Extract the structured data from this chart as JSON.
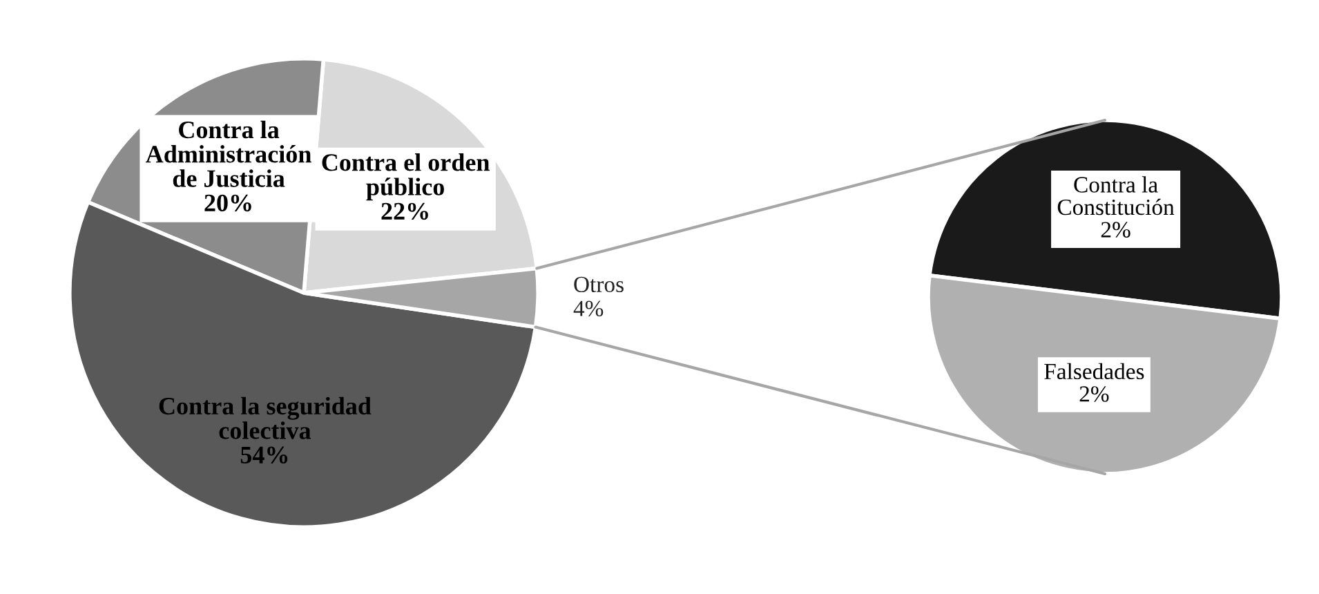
{
  "chart_data": [
    {
      "type": "pie",
      "categories": [
        "Contra el orden\npúblico",
        "Contra la\nAdministración\nde Justicia",
        "Contra la seguridad\ncolectiva",
        "Otros"
      ],
      "values": [
        22,
        20,
        54,
        4
      ],
      "value_labels": [
        "22%",
        "20%",
        "54%",
        "4%"
      ],
      "colors": [
        "#d9d9d9",
        "#8c8c8c",
        "#595959",
        "#a6a6a6"
      ]
    },
    {
      "type": "pie",
      "categories": [
        "Contra la\nConstitución",
        "Falsedades"
      ],
      "values": [
        2,
        2
      ],
      "value_labels": [
        "2%",
        "2%"
      ],
      "colors": [
        "#1a1a1a",
        "#b0b0b0"
      ]
    }
  ]
}
